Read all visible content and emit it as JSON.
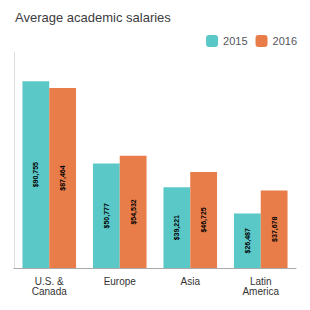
{
  "chart_data": {
    "type": "bar",
    "title": "Average academic salaries",
    "categories": [
      "U.S. &\nCanada",
      "Europe",
      "Asia",
      "Latin\nAmerica"
    ],
    "series": [
      {
        "name": "2015",
        "color": "#5BC8C8",
        "values": [
          90755,
          50777,
          39221,
          26487
        ],
        "value_labels": [
          "$90,755",
          "$50,777",
          "$39,221",
          "$26,487"
        ]
      },
      {
        "name": "2016",
        "color": "#E87D4A",
        "values": [
          87464,
          54532,
          46725,
          37678
        ],
        "value_labels": [
          "$87,464",
          "$54,532",
          "$46,725",
          "$37,678"
        ]
      }
    ],
    "ylim": [
      0,
      105000
    ],
    "data_labels": true,
    "tick_labels": "x",
    "legend": "upper right",
    "grid": false
  }
}
